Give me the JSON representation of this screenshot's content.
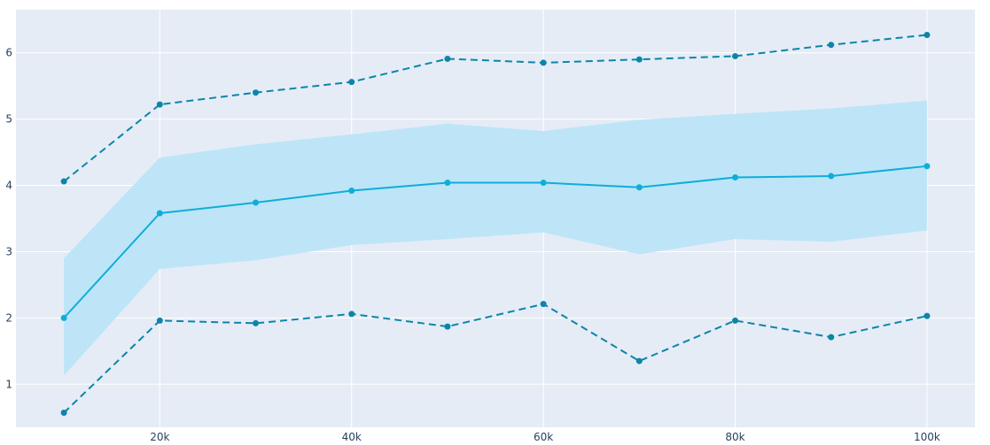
{
  "chart_data": {
    "type": "line",
    "title": "",
    "xlabel": "",
    "ylabel": "",
    "x": [
      10000,
      20000,
      30000,
      40000,
      50000,
      60000,
      70000,
      80000,
      90000,
      100000
    ],
    "xlim": [
      5000,
      105000
    ],
    "ylim": [
      0.35,
      6.65
    ],
    "x_ticks": [
      {
        "value": 20000,
        "label": "20k"
      },
      {
        "value": 40000,
        "label": "40k"
      },
      {
        "value": 60000,
        "label": "60k"
      },
      {
        "value": 80000,
        "label": "80k"
      },
      {
        "value": 100000,
        "label": "100k"
      }
    ],
    "y_ticks": [
      {
        "value": 1,
        "label": "1"
      },
      {
        "value": 2,
        "label": "2"
      },
      {
        "value": 3,
        "label": "3"
      },
      {
        "value": 4,
        "label": "4"
      },
      {
        "value": 5,
        "label": "5"
      },
      {
        "value": 6,
        "label": "6"
      }
    ],
    "grid": true,
    "band": {
      "upper": [
        2.9,
        4.42,
        4.62,
        4.77,
        4.93,
        4.82,
        4.99,
        5.08,
        5.16,
        5.28
      ],
      "lower": [
        1.13,
        2.74,
        2.87,
        3.1,
        3.19,
        3.29,
        2.96,
        3.19,
        3.15,
        3.32
      ],
      "color": "#bde5f7"
    },
    "series": [
      {
        "values": [
          4.06,
          5.22,
          5.4,
          5.56,
          5.91,
          5.85,
          5.9,
          5.95,
          6.12,
          6.27
        ],
        "style": "dashed",
        "color": "#0c85a8"
      },
      {
        "values": [
          2.0,
          3.58,
          3.74,
          3.92,
          4.04,
          4.04,
          3.97,
          4.12,
          4.14,
          4.29
        ],
        "style": "solid",
        "color": "#0fadda"
      },
      {
        "values": [
          0.57,
          1.96,
          1.92,
          2.06,
          1.87,
          2.21,
          1.35,
          1.96,
          1.71,
          2.03
        ],
        "style": "dashed",
        "color": "#0c85a8"
      }
    ],
    "colors": {
      "plot_background": "#e5ecf6",
      "grid": "#ffffff",
      "text": "#2a3f5f"
    }
  }
}
